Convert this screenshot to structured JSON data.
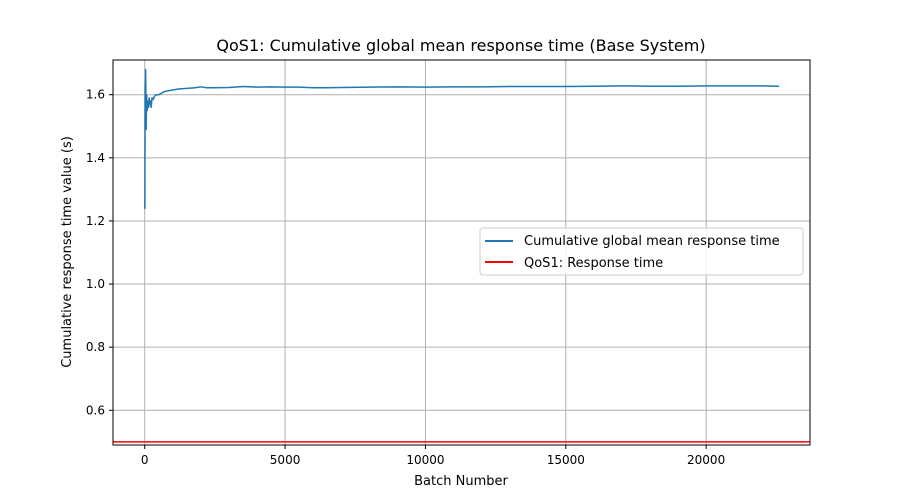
{
  "chart_data": {
    "type": "line",
    "title": "QoS1: Cumulative global mean response time (Base System)",
    "xlabel": "Batch Number",
    "ylabel": "Cumulative response time value (s)",
    "xlim": [
      -1130,
      23700
    ],
    "ylim": [
      0.49,
      1.71
    ],
    "x_ticks": [
      0,
      5000,
      10000,
      15000,
      20000
    ],
    "x_tick_labels": [
      "0",
      "5000",
      "10000",
      "15000",
      "20000"
    ],
    "y_ticks": [
      0.6,
      0.8,
      1.0,
      1.2,
      1.4,
      1.6
    ],
    "y_tick_labels": [
      "0.6",
      "0.8",
      "1.0",
      "1.2",
      "1.4",
      "1.6"
    ],
    "grid": true,
    "legend_position": "center-right",
    "series": [
      {
        "name": "Cumulative global mean response time",
        "color": "#1f77b4",
        "style": "line",
        "x": [
          0,
          5,
          10,
          15,
          20,
          25,
          30,
          40,
          50,
          60,
          70,
          80,
          90,
          100,
          120,
          140,
          160,
          180,
          200,
          230,
          260,
          300,
          350,
          400,
          500,
          600,
          700,
          800,
          1000,
          1200,
          1500,
          1800,
          2000,
          2200,
          2500,
          3000,
          3500,
          4000,
          4500,
          5000,
          5500,
          6000,
          6500,
          7000,
          8000,
          9000,
          10000,
          11000,
          12000,
          13000,
          14000,
          15000,
          16000,
          17000,
          18000,
          19000,
          20000,
          21000,
          22000,
          22600
        ],
        "y": [
          1.27,
          1.24,
          1.45,
          1.61,
          1.64,
          1.58,
          1.68,
          1.62,
          1.49,
          1.55,
          1.6,
          1.57,
          1.55,
          1.58,
          1.57,
          1.56,
          1.59,
          1.57,
          1.58,
          1.56,
          1.59,
          1.585,
          1.595,
          1.6,
          1.6,
          1.605,
          1.61,
          1.612,
          1.615,
          1.618,
          1.62,
          1.622,
          1.625,
          1.622,
          1.622,
          1.623,
          1.626,
          1.624,
          1.625,
          1.624,
          1.624,
          1.622,
          1.622,
          1.623,
          1.624,
          1.625,
          1.624,
          1.625,
          1.625,
          1.626,
          1.626,
          1.626,
          1.627,
          1.628,
          1.627,
          1.627,
          1.628,
          1.628,
          1.628,
          1.627
        ]
      },
      {
        "name": "QoS1: Response time",
        "color": "#ff0000",
        "style": "hline",
        "y": 0.5
      }
    ]
  }
}
